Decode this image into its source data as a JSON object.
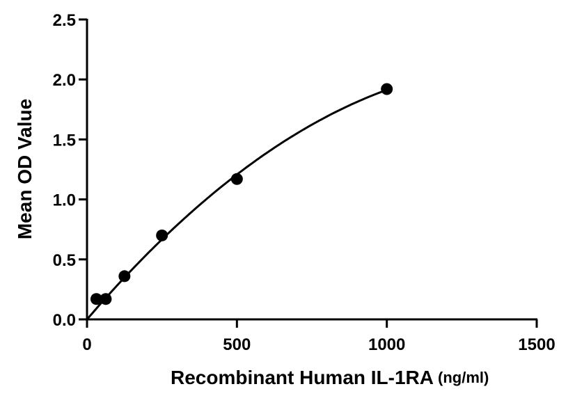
{
  "chart_data": {
    "type": "scatter",
    "title": "",
    "xlabel": "Recombinant Human IL-1RA",
    "xlabel_unit": "(ng/ml)",
    "ylabel": "Mean OD Value",
    "xlim": [
      0,
      1500
    ],
    "ylim": [
      0,
      2.5
    ],
    "x_ticks": [
      "0",
      "500",
      "1000",
      "1500"
    ],
    "y_ticks": [
      "0.0",
      "0.5",
      "1.0",
      "1.5",
      "2.0",
      "2.5"
    ],
    "grid": false,
    "legend": "none",
    "series": [
      {
        "x": [
          31.25,
          62.5,
          125,
          250,
          500,
          1000
        ],
        "y": [
          0.17,
          0.17,
          0.36,
          0.7,
          1.17,
          1.92
        ],
        "marker": "filled-circle",
        "color": "#000000",
        "fit_curve": true
      }
    ]
  }
}
